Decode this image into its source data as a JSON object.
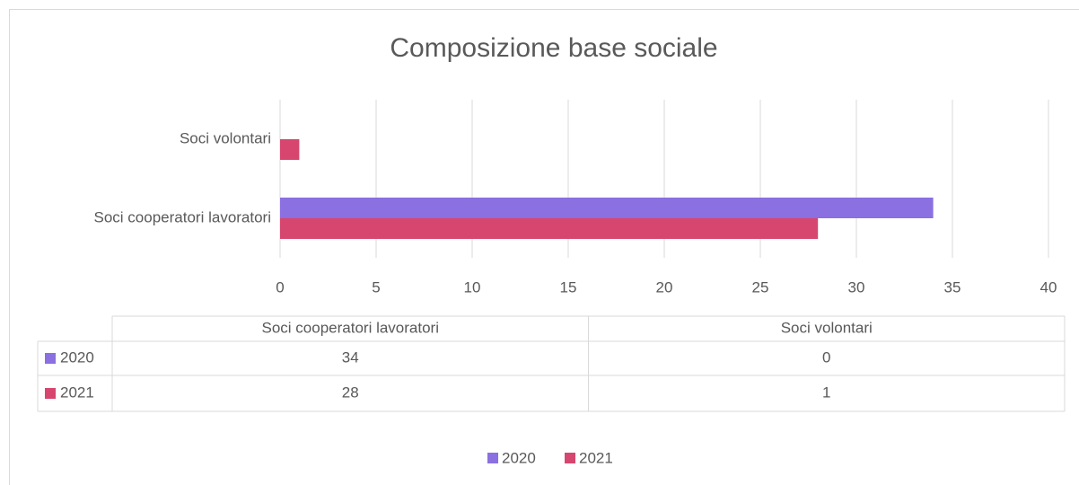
{
  "chart_data": {
    "type": "bar",
    "orientation": "horizontal",
    "title": "Composizione base sociale",
    "categories": [
      "Soci cooperatori lavoratori",
      "Soci volontari"
    ],
    "series": [
      {
        "name": "2020",
        "color": "#8a70e0",
        "values": [
          34,
          0
        ]
      },
      {
        "name": "2021",
        "color": "#d6466f",
        "values": [
          28,
          1
        ]
      }
    ],
    "xlim": [
      0,
      40
    ],
    "xticks": [
      0,
      5,
      10,
      15,
      20,
      25,
      30,
      35,
      40
    ],
    "grid": true,
    "legend": "bottom"
  }
}
